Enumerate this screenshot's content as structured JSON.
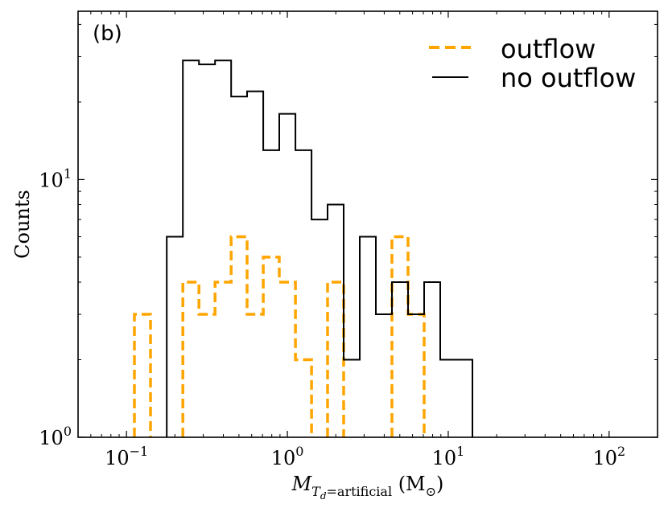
{
  "chart_data": {
    "type": "histogram",
    "panel_label": "(b)",
    "xscale": "log",
    "yscale": "log",
    "xlim": [
      0.05,
      200
    ],
    "ylim": [
      1,
      45
    ],
    "xlabel": "M_{T_d=artificial} (M_⊙)",
    "ylabel": "Counts",
    "x_ticks": [
      {
        "value": 0.1,
        "label": "10^{-1}"
      },
      {
        "value": 1,
        "label": "10^{0}"
      },
      {
        "value": 10,
        "label": "10^{1}"
      },
      {
        "value": 100,
        "label": "10^{2}"
      }
    ],
    "y_ticks": [
      {
        "value": 1,
        "label": "10^{0}"
      },
      {
        "value": 10,
        "label": "10^{1}"
      }
    ],
    "legend": {
      "location": "top-right",
      "entries": [
        "outflow",
        "no outflow"
      ]
    },
    "series": [
      {
        "name": "outflow",
        "color": "#ffa500",
        "style": "dashed",
        "bins": [
          [
            0.112,
            0.141,
            3
          ],
          [
            0.224,
            0.282,
            4
          ],
          [
            0.282,
            0.355,
            3
          ],
          [
            0.355,
            0.447,
            4
          ],
          [
            0.447,
            0.562,
            6
          ],
          [
            0.562,
            0.708,
            3
          ],
          [
            0.708,
            0.891,
            5
          ],
          [
            0.891,
            1.122,
            4
          ],
          [
            1.122,
            1.413,
            2
          ],
          [
            1.778,
            2.239,
            4
          ],
          [
            4.467,
            5.623,
            6
          ],
          [
            5.623,
            7.079,
            3
          ]
        ]
      },
      {
        "name": "no outflow",
        "color": "#000000",
        "style": "solid",
        "bins": [
          [
            0.178,
            0.224,
            6
          ],
          [
            0.224,
            0.282,
            29
          ],
          [
            0.282,
            0.355,
            28
          ],
          [
            0.355,
            0.447,
            29
          ],
          [
            0.447,
            0.562,
            21
          ],
          [
            0.562,
            0.708,
            22
          ],
          [
            0.708,
            0.891,
            13
          ],
          [
            0.891,
            1.122,
            18
          ],
          [
            1.122,
            1.413,
            13
          ],
          [
            1.413,
            1.778,
            7
          ],
          [
            1.778,
            2.239,
            8
          ],
          [
            2.239,
            2.818,
            2
          ],
          [
            2.818,
            3.548,
            6
          ],
          [
            3.548,
            4.467,
            3
          ],
          [
            4.467,
            5.623,
            4
          ],
          [
            5.623,
            7.079,
            3
          ],
          [
            7.079,
            8.913,
            4
          ],
          [
            8.913,
            11.22,
            2
          ],
          [
            11.22,
            14.13,
            2
          ]
        ]
      }
    ]
  }
}
